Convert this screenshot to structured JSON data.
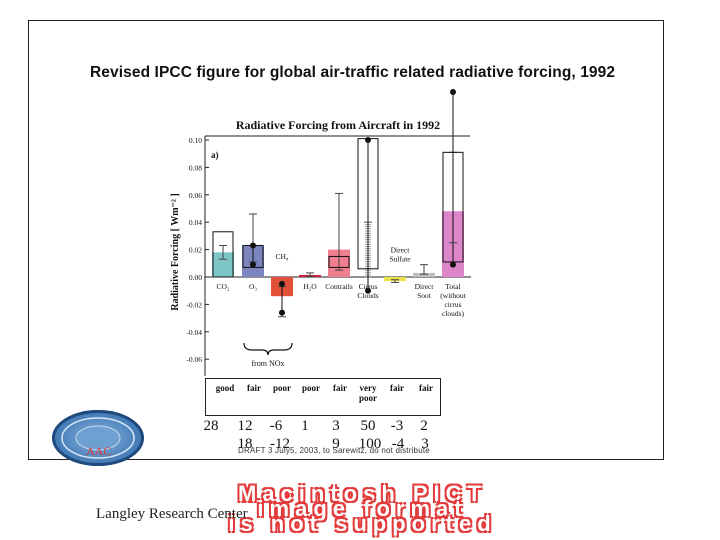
{
  "page": {
    "title": "Revised IPCC figure for global air-traffic related radiative forcing, 1992",
    "footnote": "DRAFT 3 July5, 2003, to Sarewitz, do not distribute",
    "logo_text": "AAC",
    "pict_message": "Macintosh PICT\nimage format\nis not supported",
    "center_name": "Langley Research Center"
  },
  "chart_data": {
    "type": "bar",
    "title": "Radiative Forcing from Aircraft in 1992",
    "panel_label": "a)",
    "ylabel": "Radiative Forcing [ Wm⁻² ]",
    "ylim": [
      -0.07,
      0.1
    ],
    "yticks": [
      0.1,
      0.08,
      0.06,
      0.04,
      0.02,
      0.0,
      -0.02,
      -0.04,
      -0.06
    ],
    "ytick_labels": [
      "0.10",
      "0.08",
      "0.06",
      "0.04",
      "0.02",
      "0.00",
      "-0.02",
      "-0.04",
      "-0.06"
    ],
    "categories": [
      "CO₂",
      "O₃",
      "CH₄",
      "H₂O",
      "Contrails",
      "Cirrus Clouds",
      "Direct Sulfate",
      "Direct Soot",
      "Total (without cirrus clouds)"
    ],
    "category_labels": [
      {
        "lines": [
          "CO₂"
        ],
        "pos": "below"
      },
      {
        "lines": [
          "O₃"
        ],
        "pos": "below"
      },
      {
        "lines": [
          "CH₄"
        ],
        "pos": "above"
      },
      {
        "lines": [
          "H₂O"
        ],
        "pos": "below"
      },
      {
        "lines": [
          "Contrails"
        ],
        "pos": "below"
      },
      {
        "lines": [
          "Cirrus",
          "Clouds"
        ],
        "pos": "below"
      },
      {
        "lines": [
          "Direct",
          "Sulfate"
        ],
        "pos": "above"
      },
      {
        "lines": [
          "Direct",
          "Soot"
        ],
        "pos": "below"
      },
      {
        "lines": [
          "Total",
          "(without",
          "cirrus",
          "clouds)"
        ],
        "pos": "below"
      }
    ],
    "values": [
      0.018,
      0.023,
      -0.014,
      0.0015,
      0.02,
      0.0,
      -0.003,
      0.003,
      0.048
    ],
    "colors": [
      "#7ec6c6",
      "#7b85bf",
      "#e2503a",
      "#cc2244",
      "#ef7f8f",
      "#ffffff",
      "#e9e34a",
      "#bfbfbf",
      "#dd85c9"
    ],
    "error_low": [
      0.013,
      0.011,
      -0.029,
      0.0004,
      0.005,
      0.0,
      -0.004,
      0.002,
      0.025
    ],
    "error_high": [
      0.023,
      0.046,
      -0.007,
      0.003,
      0.061,
      0.04,
      -0.002,
      0.009,
      0.091
    ],
    "new_boxes": [
      {
        "index": 0,
        "low": 0.0,
        "high": 0.033
      },
      {
        "index": 1,
        "low": 0.007,
        "high": 0.023
      },
      {
        "index": 4,
        "low": 0.007,
        "high": 0.015
      },
      {
        "index": 5,
        "low": 0.006,
        "high": 0.101
      },
      {
        "index": 8,
        "low": 0.011,
        "high": 0.091
      }
    ],
    "new_points": [
      {
        "index": 1,
        "y": 0.023
      },
      {
        "index": 1,
        "y": 0.009
      },
      {
        "index": 2,
        "y": -0.005
      },
      {
        "index": 2,
        "y": -0.026
      },
      {
        "index": 5,
        "y": 0.1
      },
      {
        "index": 5,
        "y": -0.01
      },
      {
        "index": 8,
        "y": 0.135
      },
      {
        "index": 8,
        "y": 0.009
      }
    ],
    "nox_label": "from NOx",
    "ratings": [
      "good",
      "fair",
      "poor",
      "poor",
      "fair",
      "very poor",
      "fair",
      "fair"
    ],
    "row1": [
      "28",
      "12",
      "-6",
      "1",
      "3",
      "50",
      "-3",
      "2"
    ],
    "row2": [
      "18",
      "-12",
      "9",
      "100",
      "-4",
      "3"
    ]
  }
}
